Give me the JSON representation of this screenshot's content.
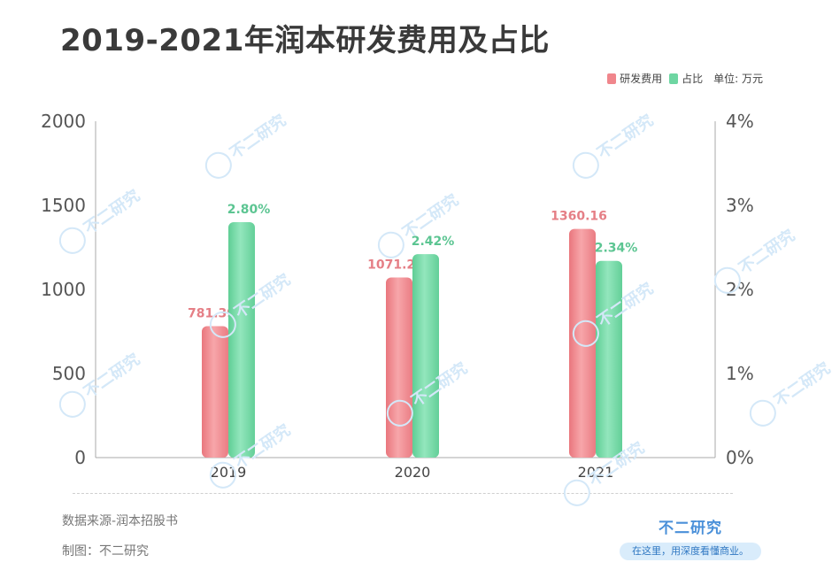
{
  "title": "2019-2021年润本研发费用及占比",
  "legend": {
    "items": [
      {
        "label": "研发费用",
        "color": "#f0868c"
      },
      {
        "label": "占比",
        "color": "#6ed6a2"
      }
    ],
    "unit": "单位: 万元"
  },
  "footer": {
    "source": "数据来源-润本招股书",
    "maker": "制图：不二研究",
    "brand": "不二研究",
    "slogan": "在这里，用深度看懂商业。"
  },
  "watermark": "不二研究",
  "chart_data": {
    "type": "bar",
    "categories": [
      "2019",
      "2020",
      "2021"
    ],
    "series": [
      {
        "name": "研发费用",
        "axis": "left",
        "color": "#f0868c",
        "label_color": "#e57f86",
        "values": [
          781.39,
          1071.26,
          1360.16
        ],
        "labels": [
          "781.39",
          "1071.26",
          "1360.16"
        ]
      },
      {
        "name": "占比",
        "axis": "right",
        "color": "#6ed6a2",
        "label_color": "#5cc592",
        "values": [
          2.8,
          2.42,
          2.34
        ],
        "labels": [
          "2.80%",
          "2.42%",
          "2.34%"
        ]
      }
    ],
    "y_left": {
      "min": 0,
      "max": 2000,
      "ticks": [
        "0",
        "500",
        "1000",
        "1500",
        "2000"
      ],
      "tick_values": [
        0,
        500,
        1000,
        1500,
        2000
      ]
    },
    "y_right": {
      "min": 0,
      "max": 4,
      "ticks": [
        "0%",
        "1%",
        "2%",
        "3%",
        "4%"
      ],
      "tick_values": [
        0,
        1,
        2,
        3,
        4
      ]
    },
    "grid": false,
    "legend_position": "top-right"
  }
}
